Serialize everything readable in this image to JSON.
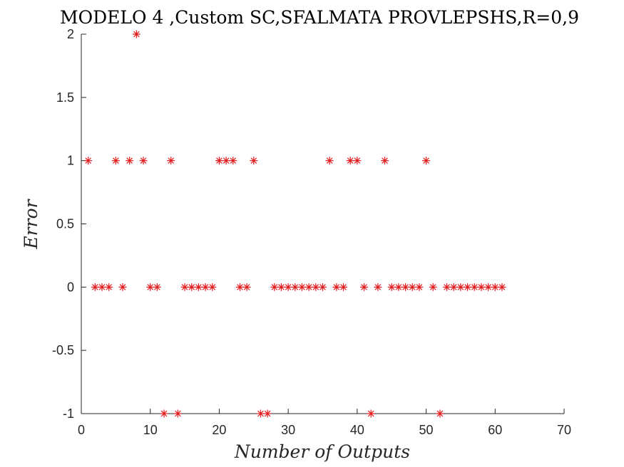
{
  "chart_data": {
    "type": "scatter",
    "title": "MODELO 4 ,Custom SC,SFALMATA PROVLEPSHS,R=0,9",
    "xlabel": "Number of Outputs",
    "ylabel": "Error",
    "xlim": [
      0,
      70
    ],
    "ylim": [
      -1,
      2
    ],
    "xticks": [
      0,
      10,
      20,
      30,
      40,
      50,
      60,
      70
    ],
    "xtick_labels": [
      "0",
      "10",
      "20",
      "30",
      "40",
      "50",
      "60",
      "70"
    ],
    "yticks": [
      -1,
      -0.5,
      0,
      0.5,
      1,
      1.5,
      2
    ],
    "ytick_labels": [
      "-1",
      "-0.5",
      "0",
      "0.5",
      "1",
      "1.5",
      "2"
    ],
    "marker": "asterisk",
    "grid": false,
    "color": "#e41a1c",
    "series": [
      {
        "x": [
          1,
          2,
          3,
          4,
          5,
          6,
          7,
          8,
          9,
          10,
          11,
          12,
          13,
          14,
          15,
          16,
          17,
          18,
          19,
          20,
          21,
          22,
          23,
          24,
          25,
          26,
          27,
          28,
          29,
          30,
          31,
          32,
          33,
          34,
          35,
          36,
          37,
          38,
          39,
          40,
          41,
          42,
          43,
          44,
          45,
          46,
          47,
          48,
          49,
          50,
          51,
          52,
          53,
          54,
          55,
          56,
          57,
          58,
          59,
          60,
          61
        ],
        "y": [
          1,
          0,
          0,
          0,
          1,
          0,
          1,
          2,
          1,
          0,
          0,
          -1,
          1,
          -1,
          0,
          0,
          0,
          0,
          0,
          1,
          1,
          1,
          0,
          0,
          1,
          -1,
          -1,
          0,
          0,
          0,
          0,
          0,
          0,
          0,
          0,
          1,
          0,
          0,
          1,
          1,
          0,
          -1,
          0,
          1,
          0,
          0,
          0,
          0,
          0,
          1,
          0,
          -1,
          0,
          0,
          0,
          0,
          0,
          0,
          0,
          0,
          0
        ]
      }
    ]
  }
}
